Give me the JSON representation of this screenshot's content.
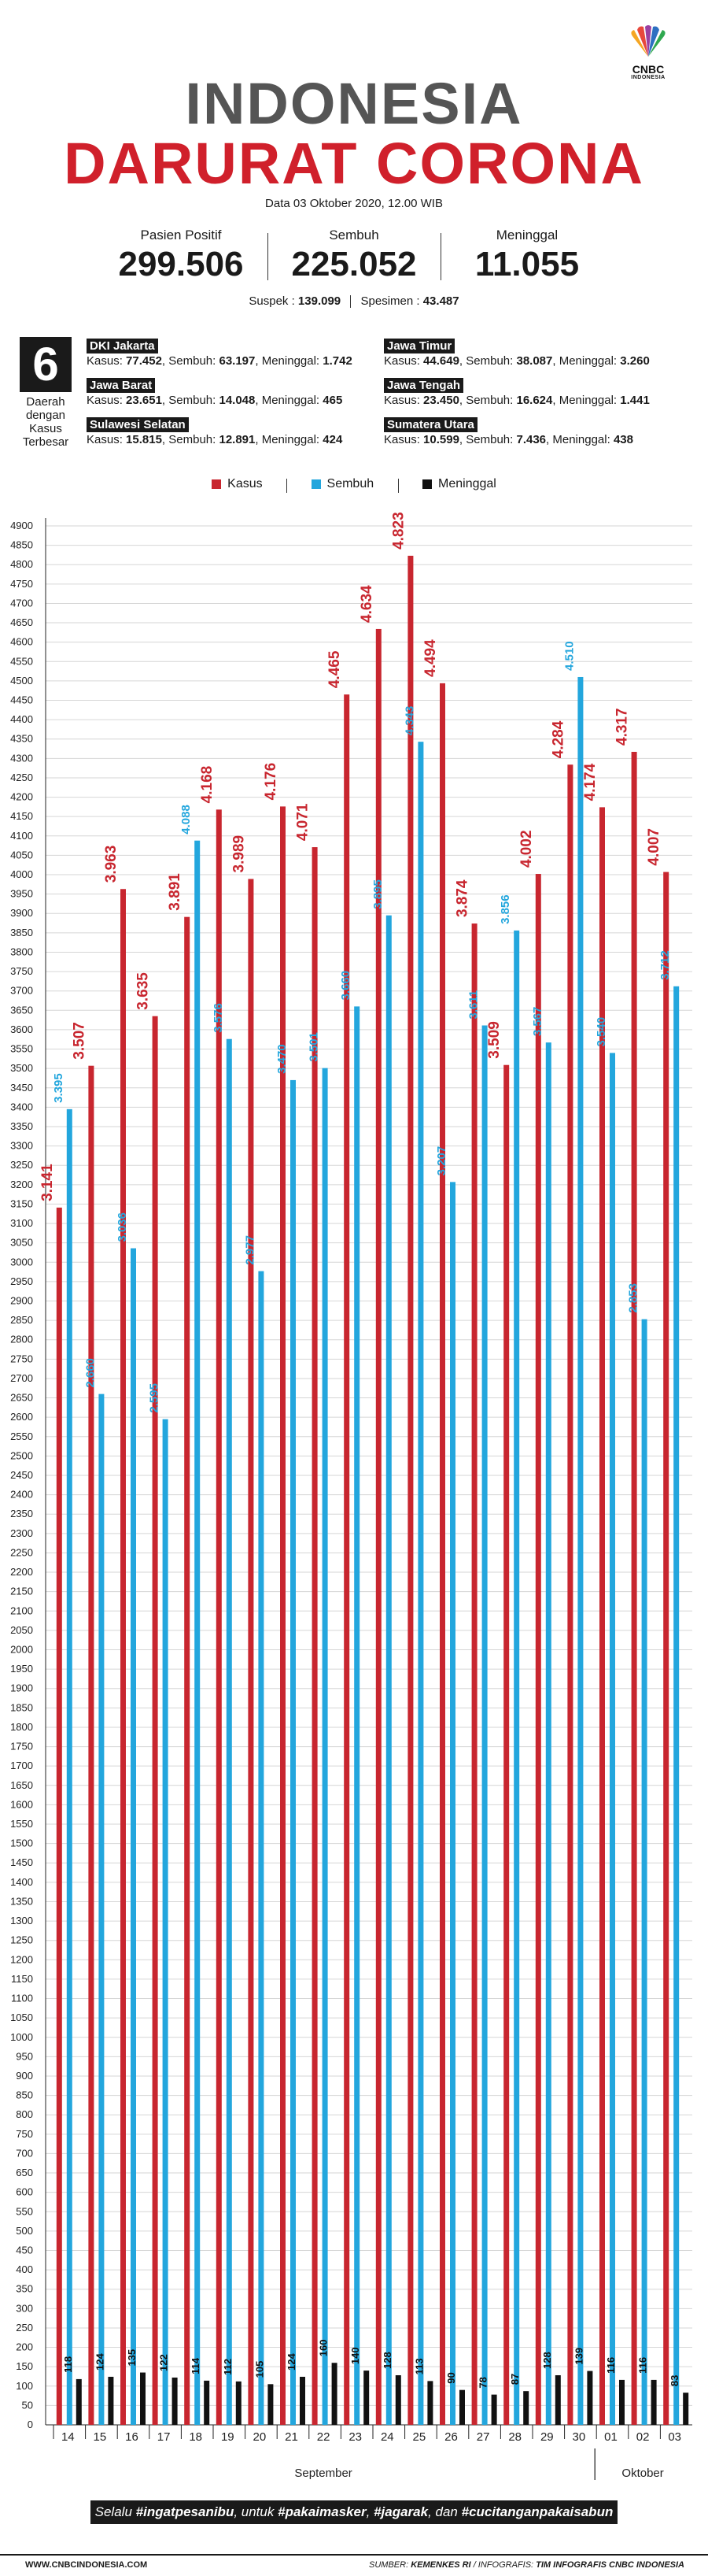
{
  "logo": {
    "text": "CNBC",
    "subtext": "INDONESIA"
  },
  "header": {
    "title_line1": "INDONESIA",
    "title_line2": "DARURAT CORONA",
    "date": "Data 03 Oktober 2020, 12.00 WIB"
  },
  "summary": {
    "positive_label": "Pasien Positif",
    "positive_value": "299.506",
    "recovered_label": "Sembuh",
    "recovered_value": "225.052",
    "deaths_label": "Meninggal",
    "deaths_value": "11.055",
    "suspect_label": "Suspek :",
    "suspect_value": "139.099",
    "specimen_label": "Spesimen :",
    "specimen_value": "43.487"
  },
  "top_provinces": {
    "count": "6",
    "caption": [
      "Daerah",
      "dengan",
      "Kasus",
      "Terbesar"
    ],
    "labels": {
      "cases": "Kasus:",
      "recovered": "Sembuh:",
      "deaths": "Meninggal:"
    },
    "items": [
      {
        "name": "DKI Jakarta",
        "cases": "77.452",
        "recovered": "63.197",
        "deaths": "1.742"
      },
      {
        "name": "Jawa Barat",
        "cases": "23.651",
        "recovered": "14.048",
        "deaths": "465"
      },
      {
        "name": "Sulawesi Selatan",
        "cases": "15.815",
        "recovered": "12.891",
        "deaths": "424"
      },
      {
        "name": "Jawa Timur",
        "cases": "44.649",
        "recovered": "38.087",
        "deaths": "3.260"
      },
      {
        "name": "Jawa Tengah",
        "cases": "23.450",
        "recovered": "16.624",
        "deaths": "1.441"
      },
      {
        "name": "Sumatera Utara",
        "cases": "10.599",
        "recovered": "7.436",
        "deaths": "438"
      }
    ]
  },
  "legend": {
    "cases": "Kasus",
    "recovered": "Sembuh",
    "deaths": "Meninggal"
  },
  "colors": {
    "cases": "#c8262f",
    "recovered": "#23a6dd",
    "deaths": "#111111",
    "title_gray": "#555555",
    "title_red": "#d0202b"
  },
  "chart_data": {
    "type": "bar",
    "categories": [
      "14",
      "15",
      "16",
      "17",
      "18",
      "19",
      "20",
      "21",
      "22",
      "23",
      "24",
      "25",
      "26",
      "27",
      "28",
      "29",
      "30",
      "01",
      "02",
      "03"
    ],
    "month_labels": [
      {
        "label": "September",
        "from": 0,
        "to": 16
      },
      {
        "label": "Oktober",
        "from": 17,
        "to": 19
      }
    ],
    "series": [
      {
        "name": "Kasus",
        "values": [
          3141,
          3507,
          3963,
          3635,
          3891,
          4168,
          3989,
          4176,
          4071,
          4465,
          4634,
          4823,
          4494,
          3874,
          3509,
          4002,
          4284,
          4174,
          4317,
          4007
        ],
        "labels": [
          "3.141",
          "3.507",
          "3.963",
          "3.635",
          "3.891",
          "4.168",
          "3.989",
          "4.176",
          "4.071",
          "4.465",
          "4.634",
          "4.823",
          "4.494",
          "3.874",
          "3.509",
          "4.002",
          "4.284",
          "4.174",
          "4.317",
          "4.007"
        ]
      },
      {
        "name": "Sembuh",
        "values": [
          3395,
          2660,
          3036,
          2595,
          4088,
          3576,
          2977,
          3470,
          3501,
          3660,
          3895,
          4343,
          3207,
          3611,
          3856,
          3567,
          4510,
          3540,
          2853,
          3712
        ],
        "labels": [
          "3.395",
          "2.660",
          "3.036",
          "2.595",
          "4.088",
          "3.576",
          "2.977",
          "3.470",
          "3.501",
          "3.660",
          "3.895",
          "4.343",
          "3.207",
          "3.611",
          "3.856",
          "3.567",
          "4.510",
          "3.540",
          "2.853",
          "3.712"
        ]
      },
      {
        "name": "Meninggal",
        "values": [
          118,
          124,
          135,
          122,
          114,
          112,
          105,
          124,
          160,
          140,
          128,
          113,
          90,
          78,
          87,
          128,
          139,
          116,
          116,
          83
        ],
        "labels": [
          "118",
          "124",
          "135",
          "122",
          "114",
          "112",
          "105",
          "124",
          "160",
          "140",
          "128",
          "113",
          "90",
          "78",
          "87",
          "128",
          "139",
          "116",
          "116",
          "83"
        ]
      }
    ],
    "ylim": [
      0,
      4900
    ],
    "ytick_step": 50,
    "y_ticks": [
      "0",
      "50",
      "100",
      "150",
      "200",
      "250",
      "300",
      "350",
      "400",
      "450",
      "500",
      "550",
      "600",
      "650",
      "700",
      "750",
      "800",
      "850",
      "900",
      "950",
      "1000",
      "1050",
      "1100",
      "1150",
      "1200",
      "1250",
      "1300",
      "1350",
      "1400",
      "1450",
      "1500",
      "1550",
      "1600",
      "1650",
      "1700",
      "1750",
      "1800",
      "1850",
      "1900",
      "1950",
      "2000",
      "2050",
      "2100",
      "2150",
      "2200",
      "2250",
      "2300",
      "2350",
      "2400",
      "2450",
      "2500",
      "2550",
      "2600",
      "2650",
      "2700",
      "2750",
      "2800",
      "2850",
      "2900",
      "2950",
      "3000",
      "3050",
      "3100",
      "3150",
      "3200",
      "3250",
      "3300",
      "3350",
      "3400",
      "3450",
      "3500",
      "3550",
      "3600",
      "3650",
      "3700",
      "3750",
      "3800",
      "3850",
      "3900",
      "3950",
      "4000",
      "4050",
      "4100",
      "4150",
      "4200",
      "4250",
      "4300",
      "4350",
      "4400",
      "4450",
      "4500",
      "4550",
      "4600",
      "4650",
      "4700",
      "4750",
      "4800",
      "4850",
      "4900"
    ],
    "legend_position": "top-center",
    "grid": true
  },
  "tagline": {
    "prefix": "Selalu",
    "tag1": "#ingatpesanibu",
    "sep1": ", untuk",
    "tag2": "#pakaimasker",
    "sep2": ",",
    "tag3": "#jagarak",
    "sep3": ", dan",
    "tag4": "#cucitanganpakaisabun"
  },
  "footer": {
    "website": "WWW.CNBCINDONESIA.COM",
    "source_label": "SUMBER:",
    "source_value": "KEMENKES RI",
    "infographic_label": "/ INFOGRAFIS:",
    "infographic_value": "TIM INFOGRAFIS CNBC INDONESIA"
  }
}
